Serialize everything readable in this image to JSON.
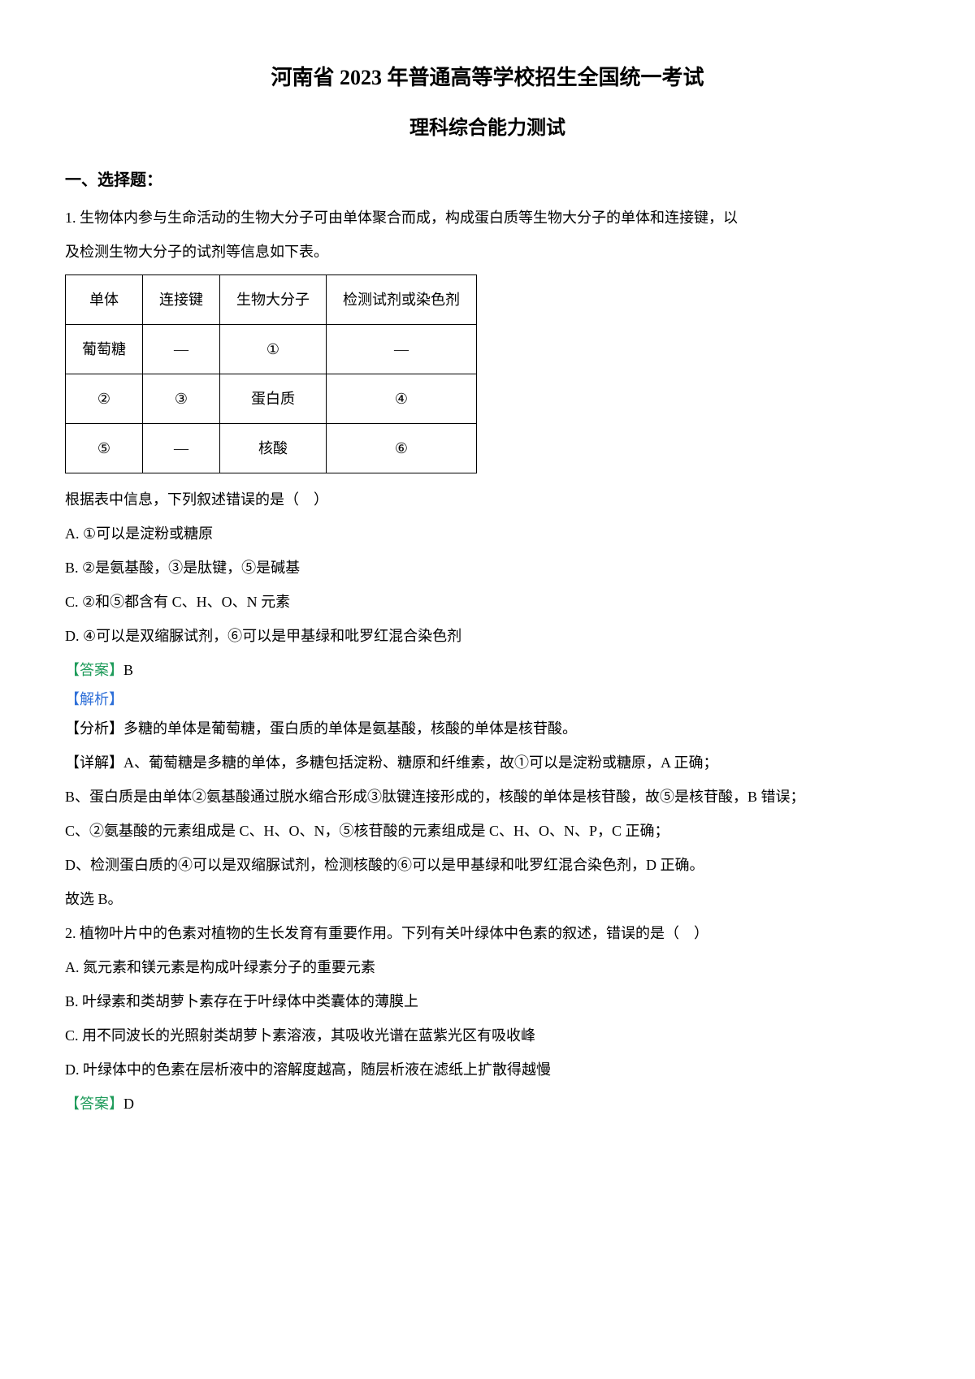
{
  "title1": "河南省 2023 年普通高等学校招生全国统一考试",
  "title2": "理科综合能力测试",
  "section1_heading": "一、选择题：",
  "q1": {
    "stem_line1": "1. 生物体内参与生命活动的生物大分子可由单体聚合而成，构成蛋白质等生物大分子的单体和连接键，以",
    "stem_line2": "及检测生物大分子的试剂等信息如下表。",
    "table": {
      "headers": [
        "单体",
        "连接键",
        "生物大分子",
        "检测试剂或染色剂"
      ],
      "rows": [
        [
          "葡萄糖",
          "—",
          "①",
          "—"
        ],
        [
          "②",
          "③",
          "蛋白质",
          "④"
        ],
        [
          "⑤",
          "—",
          "核酸",
          "⑥"
        ]
      ]
    },
    "post_table": "根据表中信息，下列叙述错误的是（　）",
    "opt_a": "A. ①可以是淀粉或糖原",
    "opt_b": "B. ②是氨基酸，③是肽键，⑤是碱基",
    "opt_c": "C. ②和⑤都含有 C、H、O、N 元素",
    "opt_d": "D. ④可以是双缩脲试剂，⑥可以是甲基绿和吡罗红混合染色剂",
    "answer_label": "【答案】",
    "answer_value": "B",
    "analysis_label": "【解析】",
    "analysis_lines": [
      "【分析】多糖的单体是葡萄糖，蛋白质的单体是氨基酸，核酸的单体是核苷酸。",
      "【详解】A、葡萄糖是多糖的单体，多糖包括淀粉、糖原和纤维素，故①可以是淀粉或糖原，A 正确；",
      "B、蛋白质是由单体②氨基酸通过脱水缩合形成③肽键连接形成的，核酸的单体是核苷酸，故⑤是核苷酸，B 错误；",
      "C、②氨基酸的元素组成是 C、H、O、N，⑤核苷酸的元素组成是 C、H、O、N、P，C 正确；",
      "D、检测蛋白质的④可以是双缩脲试剂，检测核酸的⑥可以是甲基绿和吡罗红混合染色剂，D 正确。",
      "故选 B。"
    ]
  },
  "q2": {
    "stem": "2. 植物叶片中的色素对植物的生长发育有重要作用。下列有关叶绿体中色素的叙述，错误的是（　）",
    "opt_a": "A. 氮元素和镁元素是构成叶绿素分子的重要元素",
    "opt_b": "B. 叶绿素和类胡萝卜素存在于叶绿体中类囊体的薄膜上",
    "opt_c": "C. 用不同波长的光照射类胡萝卜素溶液，其吸收光谱在蓝紫光区有吸收峰",
    "opt_d": "D. 叶绿体中的色素在层析液中的溶解度越高，随层析液在滤纸上扩散得越慢",
    "answer_label": "【答案】",
    "answer_value": "D"
  },
  "colors": {
    "text": "#000000",
    "answer_green": "#1e9b5a",
    "analysis_blue": "#2e6fd8",
    "background": "#ffffff",
    "table_border": "#000000"
  },
  "typography": {
    "body_fontsize": 18,
    "title1_fontsize": 26,
    "title2_fontsize": 24,
    "heading_fontsize": 20,
    "font_family": "SimSun"
  }
}
